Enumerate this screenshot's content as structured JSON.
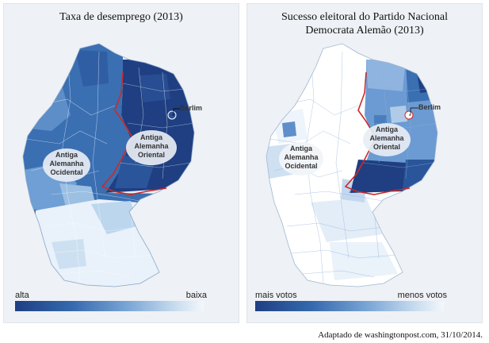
{
  "maps": [
    {
      "title_line1": "Taxa de desemprego (2013)",
      "title_line2": "",
      "east_region": [
        "Antiga",
        "Alemanha",
        "Oriental"
      ],
      "west_region": [
        "Antiga",
        "Alemanha",
        "Ocidental"
      ],
      "berlin_label": "Berlim",
      "legend_low": "alta",
      "legend_high": "baixa"
    },
    {
      "title_line1": "Sucesso eleitoral do Partido Nacional",
      "title_line2": "Democrata Alemão (2013)",
      "east_region": [
        "Antiga",
        "Alemanha",
        "Oriental"
      ],
      "west_region": [
        "Antiga",
        "Alemanha",
        "Ocidental"
      ],
      "berlin_label": "Berlim",
      "legend_low": "mais votos",
      "legend_high": "menos votos"
    }
  ],
  "colors": {
    "dark": "#1f3f82",
    "mid": "#3569ad",
    "light": "#9cc0e3",
    "pale": "#e7f0fa",
    "border_red": "#cc2a2a"
  },
  "source_credit": "Adaptado de washingtonpost.com, 31/10/2014."
}
